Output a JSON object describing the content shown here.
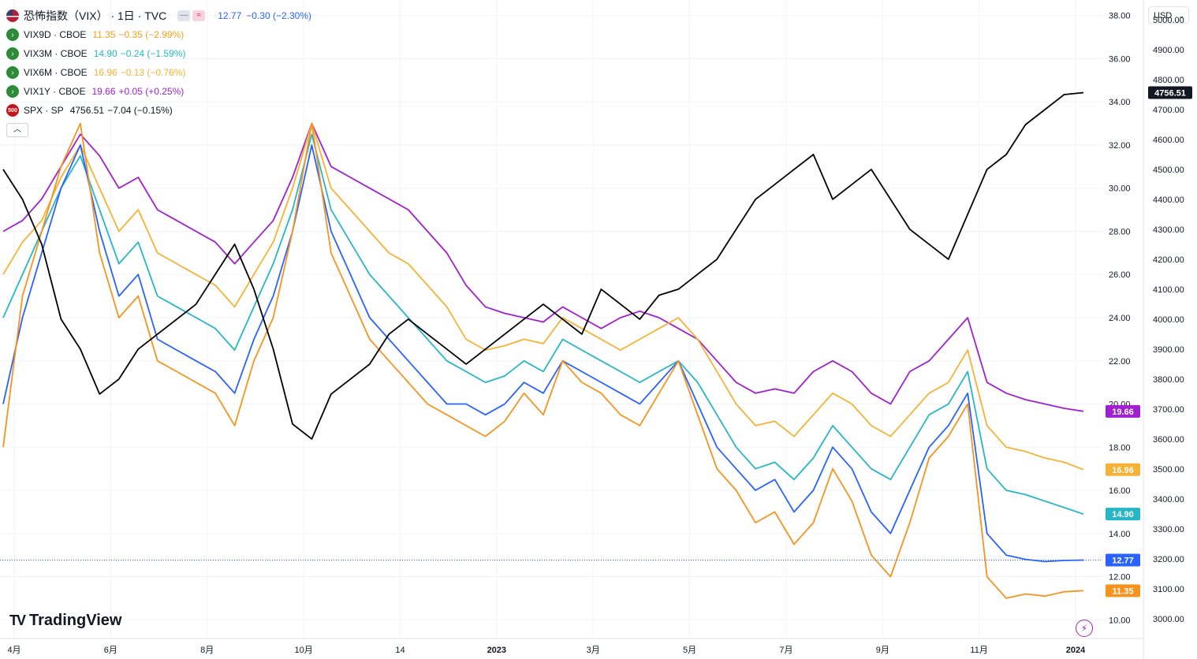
{
  "header": {
    "main_title": "恐怖指数（VIX） · 1日 · TVC",
    "main_value": "12.77",
    "main_change": "−0.30 (−2.30%)",
    "pill_a": "—",
    "pill_b": "≈",
    "collapse_icon": "chevron-up-icon"
  },
  "legend": [
    {
      "symbol": "VIX9D · CBOE",
      "value": "11.35",
      "change": "−0.35 (−2.99%)",
      "color": "#f7a21b"
    },
    {
      "symbol": "VIX3M · CBOE",
      "value": "14.90",
      "change": "−0.24 (−1.59%)",
      "color": "#26b6c6"
    },
    {
      "symbol": "VIX6M · CBOE",
      "value": "16.96",
      "change": "−0.13 (−0.76%)",
      "color": "#f5b234"
    },
    {
      "symbol": "VIX1Y · CBOE",
      "value": "19.66",
      "change": "+0.05 (+0.25%)",
      "color": "#a020d0"
    },
    {
      "symbol": "SPX · SP",
      "value": "4756.51",
      "change": "−7.04 (−0.15%)",
      "color": "#131722"
    }
  ],
  "spx_icon_text": "500",
  "currency": "USD",
  "logo_text": "TradingView",
  "colors": {
    "vix": "#2962ff",
    "vix9d": "#f7931e",
    "vix3m": "#26b6c6",
    "vix6m": "#f5b234",
    "vix1y": "#a020d0",
    "spx": "#000000"
  },
  "chart_data": {
    "type": "line",
    "x_labels": [
      "4月",
      "6月",
      "8月",
      "10月",
      "14",
      "2023",
      "3月",
      "5月",
      "7月",
      "9月",
      "11月",
      "2024"
    ],
    "left_axis": {
      "ticks": [
        "38.00",
        "36.00",
        "34.00",
        "32.00",
        "30.00",
        "28.00",
        "26.00",
        "24.00",
        "22.00",
        "20.00",
        "18.00",
        "16.00",
        "14.00",
        "12.00",
        "10.00"
      ],
      "ylim": [
        9.5,
        38.5
      ]
    },
    "right_axis": {
      "ticks": [
        "5000.00",
        "4900.00",
        "4800.00",
        "4700.00",
        "4600.00",
        "4500.00",
        "4400.00",
        "4300.00",
        "4200.00",
        "4100.00",
        "4000.00",
        "3900.00",
        "3800.00",
        "3700.00",
        "3600.00",
        "3500.00",
        "3400.00",
        "3300.00",
        "3200.00",
        "3100.00",
        "3000.00"
      ],
      "ylim": [
        2960,
        5050
      ]
    },
    "last_labels": [
      {
        "text": "4756.51",
        "value": 4756.51,
        "axis": "right",
        "color": "#131722"
      },
      {
        "text": "19.66",
        "value": 19.66,
        "axis": "left",
        "color": "#a020d0"
      },
      {
        "text": "16.96",
        "value": 16.96,
        "axis": "left",
        "color": "#f5b234"
      },
      {
        "text": "14.90",
        "value": 14.9,
        "axis": "left",
        "color": "#26b6c6"
      },
      {
        "text": "12.77",
        "value": 12.77,
        "axis": "left",
        "color": "#2962ff"
      },
      {
        "text": "11.35",
        "value": 11.35,
        "axis": "left",
        "color": "#f7931e"
      }
    ],
    "series": [
      {
        "name": "VIX1Y · CBOE",
        "axis": "left",
        "color": "#a020d0",
        "values": [
          28,
          28.5,
          29.5,
          31,
          32.5,
          31.5,
          30,
          30.5,
          29,
          28.5,
          28,
          27.5,
          26.5,
          27.5,
          28.5,
          30.5,
          33,
          31,
          30.5,
          30,
          29.5,
          29,
          28,
          27,
          25.5,
          24.5,
          24.2,
          24,
          23.8,
          24.5,
          24,
          23.5,
          24,
          24.3,
          24,
          23.5,
          23,
          22,
          21,
          20.5,
          20.7,
          20.5,
          21.5,
          22,
          21.5,
          20.5,
          20,
          21.5,
          22,
          23,
          24,
          21,
          20.5,
          20.2,
          20,
          19.8,
          19.66
        ]
      },
      {
        "name": "VIX6M · CBOE",
        "axis": "left",
        "color": "#f5b234",
        "values": [
          26,
          27.5,
          28.5,
          30.5,
          32,
          30,
          28,
          29,
          27,
          26.5,
          26,
          25.5,
          24.5,
          26,
          27.5,
          30,
          33,
          30,
          29,
          28,
          27,
          26.5,
          25.5,
          24.5,
          23,
          22.5,
          22.7,
          23,
          22.8,
          24,
          23.5,
          23,
          22.5,
          23,
          23.5,
          24,
          23,
          21.5,
          20,
          19,
          19.2,
          18.5,
          19.5,
          20.5,
          20,
          19,
          18.5,
          19.5,
          20.5,
          21,
          22.5,
          19,
          18,
          17.8,
          17.5,
          17.3,
          16.96
        ]
      },
      {
        "name": "VIX3M · CBOE",
        "axis": "left",
        "color": "#26b6c6",
        "values": [
          24,
          26,
          28,
          30,
          31.5,
          29,
          26.5,
          27.5,
          25,
          24.5,
          24,
          23.5,
          22.5,
          24.5,
          26.5,
          29,
          32.5,
          29,
          27.5,
          26,
          25,
          24,
          23,
          22,
          21.5,
          21,
          21.3,
          22,
          21.5,
          23,
          22.5,
          22,
          21.5,
          21,
          21.5,
          22,
          21,
          19.5,
          18,
          17,
          17.3,
          16.5,
          17.5,
          19,
          18,
          17,
          16.5,
          18,
          19.5,
          20,
          21.5,
          17,
          16,
          15.8,
          15.5,
          15.2,
          14.9
        ]
      },
      {
        "name": "恐怖指数（VIX）",
        "axis": "left",
        "color": "#2962ff",
        "values": [
          20,
          24,
          27,
          30,
          32,
          28,
          25,
          26,
          23,
          22.5,
          22,
          21.5,
          20.5,
          23,
          25,
          28,
          32,
          28,
          26,
          24,
          23,
          22,
          21,
          20,
          20,
          19.5,
          20,
          21,
          20.5,
          22,
          21.5,
          21,
          20.5,
          20,
          21,
          22,
          20,
          18,
          17,
          16,
          16.5,
          15,
          16,
          18,
          17,
          15,
          14,
          16,
          18,
          19,
          20.5,
          14,
          13,
          12.8,
          12.7,
          12.75,
          12.77
        ]
      },
      {
        "name": "VIX9D · CBOE",
        "axis": "left",
        "color": "#f7931e",
        "values": [
          18,
          25,
          28,
          31,
          33,
          27,
          24,
          25,
          22,
          21.5,
          21,
          20.5,
          19,
          22,
          24,
          28,
          33,
          27,
          25,
          23,
          22,
          21,
          20,
          19.5,
          19,
          18.5,
          19.2,
          20.5,
          19.5,
          22,
          21,
          20.5,
          19.5,
          19,
          20.5,
          22,
          19.5,
          17,
          16,
          14.5,
          15,
          13.5,
          14.5,
          17,
          15.5,
          13,
          12,
          14.5,
          17.5,
          18.5,
          20,
          12,
          11,
          11.2,
          11.1,
          11.3,
          11.35
        ]
      },
      {
        "name": "SPX · SP",
        "axis": "right",
        "color": "#000000",
        "values": [
          4500,
          4400,
          4250,
          4000,
          3900,
          3750,
          3800,
          3900,
          3950,
          4000,
          4050,
          4150,
          4250,
          4100,
          3900,
          3650,
          3600,
          3750,
          3800,
          3850,
          3950,
          4000,
          3950,
          3900,
          3850,
          3900,
          3950,
          4000,
          4050,
          4000,
          3950,
          4100,
          4050,
          4000,
          4080,
          4100,
          4150,
          4200,
          4300,
          4400,
          4450,
          4500,
          4550,
          4400,
          4450,
          4500,
          4400,
          4300,
          4250,
          4200,
          4350,
          4500,
          4550,
          4650,
          4700,
          4750,
          4756.51
        ]
      }
    ]
  }
}
